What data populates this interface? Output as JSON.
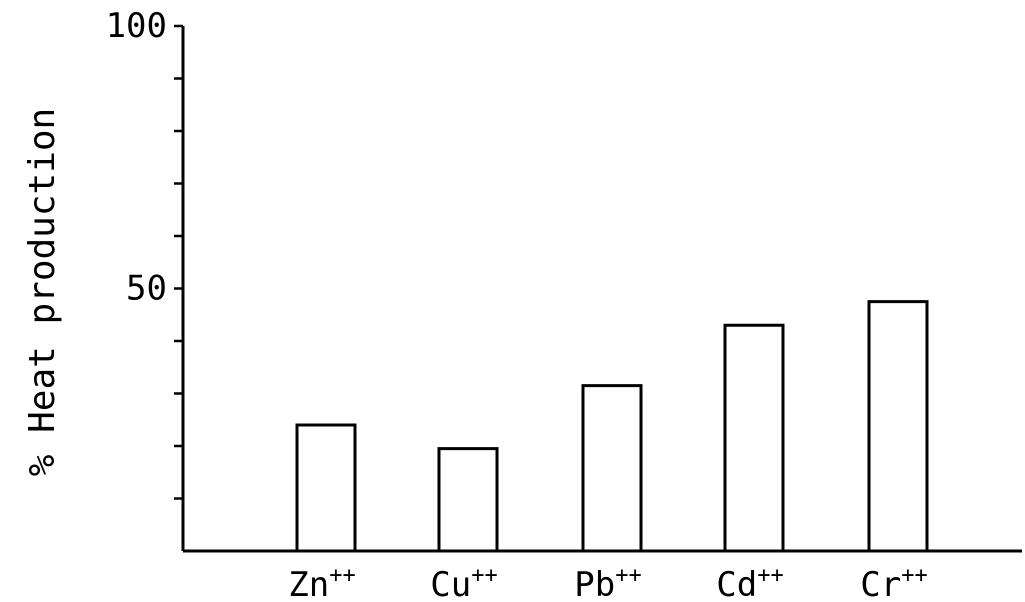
{
  "chart_data": {
    "type": "bar",
    "title": "",
    "xlabel": "",
    "ylabel": "% Heat production",
    "ylim": [
      0,
      100
    ],
    "y_ticks": [
      10,
      20,
      30,
      40,
      50,
      60,
      70,
      80,
      90,
      100
    ],
    "y_tick_labels": [
      {
        "value": 50,
        "label": "50"
      },
      {
        "value": 100,
        "label": "100"
      }
    ],
    "categories": [
      {
        "base": "Zn",
        "sup": "++"
      },
      {
        "base": "Cu",
        "sup": "++"
      },
      {
        "base": "Pb",
        "sup": "++"
      },
      {
        "base": "Cd",
        "sup": "++"
      },
      {
        "base": "Cr",
        "sup": "++"
      }
    ],
    "values": [
      24,
      19.5,
      31.5,
      43,
      47.5
    ],
    "grid": false,
    "bar_fill": "#ffffff",
    "bar_stroke": "#000000"
  }
}
